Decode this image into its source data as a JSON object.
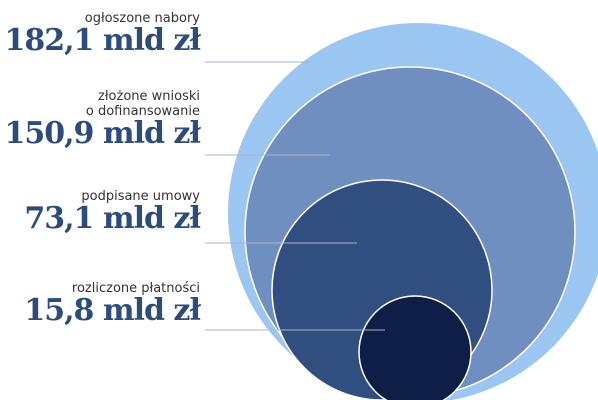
{
  "colors": {
    "circle_fill": [
      "#9bc6f1",
      "#6e8fc0",
      "#304f80",
      "#0f1e46"
    ],
    "circle_stroke": "#ffffff",
    "value_text": "#2c4c7e",
    "leader_line": "#aab4c0"
  },
  "chart_data": {
    "type": "nested-circle",
    "unit": "mld zł",
    "items": [
      {
        "label_lines": [
          "ogłoszone nabory"
        ],
        "value": 182.1,
        "value_text": "182,1 mld zł"
      },
      {
        "label_lines": [
          "złożone wnioski",
          "o dofinansowanie"
        ],
        "value": 150.9,
        "value_text": "150,9 mld zł"
      },
      {
        "label_lines": [
          "podpisane umowy"
        ],
        "value": 73.1,
        "value_text": "73,1 mld zł"
      },
      {
        "label_lines": [
          "rozliczone płatności"
        ],
        "value": 15.8,
        "value_text": "15,8 mld zł"
      }
    ]
  }
}
